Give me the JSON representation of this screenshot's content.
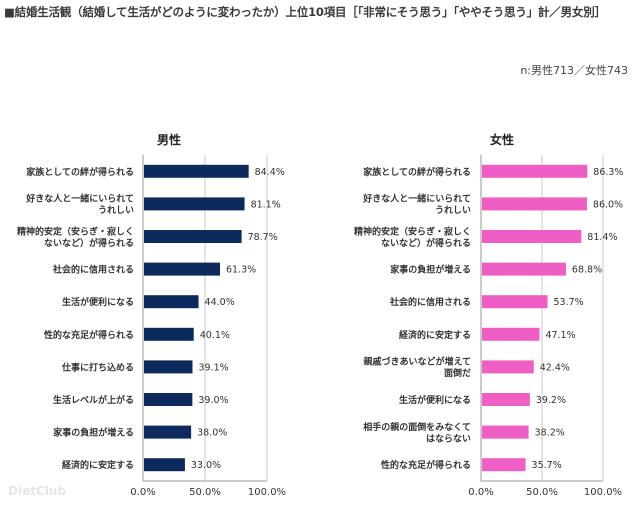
{
  "title": "■結婚生活観（結婚して生活がどのように変わったか）上位10項目［「非常にそう思う」「ややそう思う」計／男女別］",
  "sample_note": "n:男性713／女性743",
  "watermark": "DietClub",
  "colors": {
    "male": "#0d2a5e",
    "female": "#ee5ec4",
    "grid": "#c8c8c8",
    "axis": "#999999"
  },
  "chart_data": [
    {
      "type": "bar",
      "orientation": "horizontal",
      "title": "男性",
      "series_color": "#0d2a5e",
      "xlim": [
        0,
        100
      ],
      "x_ticks": [
        "0.0%",
        "50.0%",
        "100.0%"
      ],
      "x_tick_values": [
        0,
        50,
        100
      ],
      "categories": [
        [
          "家族としての絆が得られる"
        ],
        [
          "好きな人と一緒にいられて",
          "うれしい"
        ],
        [
          "精神的安定（安らぎ・寂しく",
          "ないなど）が得られる"
        ],
        [
          "社会的に信用される"
        ],
        [
          "生活が便利になる"
        ],
        [
          "性的な充足が得られる"
        ],
        [
          "仕事に打ち込める"
        ],
        [
          "生活レベルが上がる"
        ],
        [
          "家事の負担が増える"
        ],
        [
          "経済的に安定する"
        ]
      ],
      "values": [
        84.4,
        81.1,
        78.7,
        61.3,
        44.0,
        40.1,
        39.1,
        39.0,
        38.0,
        33.0
      ],
      "value_labels": [
        "84.4%",
        "81.1%",
        "78.7%",
        "61.3%",
        "44.0%",
        "40.1%",
        "39.1%",
        "39.0%",
        "38.0%",
        "33.0%"
      ]
    },
    {
      "type": "bar",
      "orientation": "horizontal",
      "title": "女性",
      "series_color": "#ee5ec4",
      "xlim": [
        0,
        100
      ],
      "x_ticks": [
        "0.0%",
        "50.0%",
        "100.0%"
      ],
      "x_tick_values": [
        0,
        50,
        100
      ],
      "categories": [
        [
          "家族としての絆が得られる"
        ],
        [
          "好きな人と一緒にいられて",
          "うれしい"
        ],
        [
          "精神的安定（安らぎ・寂しく",
          "ないなど）が得られる"
        ],
        [
          "家事の負担が増える"
        ],
        [
          "社会的に信用される"
        ],
        [
          "経済的に安定する"
        ],
        [
          "親戚づきあいなどが増えて",
          "面倒だ"
        ],
        [
          "生活が便利になる"
        ],
        [
          "相手の親の面倒をみなくて",
          "はならない"
        ],
        [
          "性的な充足が得られる"
        ]
      ],
      "values": [
        86.3,
        86.0,
        81.4,
        68.8,
        53.7,
        47.1,
        42.4,
        39.2,
        38.2,
        35.7
      ],
      "value_labels": [
        "86.3%",
        "86.0%",
        "81.4%",
        "68.8%",
        "53.7%",
        "47.1%",
        "42.4%",
        "39.2%",
        "38.2%",
        "35.7%"
      ]
    }
  ]
}
